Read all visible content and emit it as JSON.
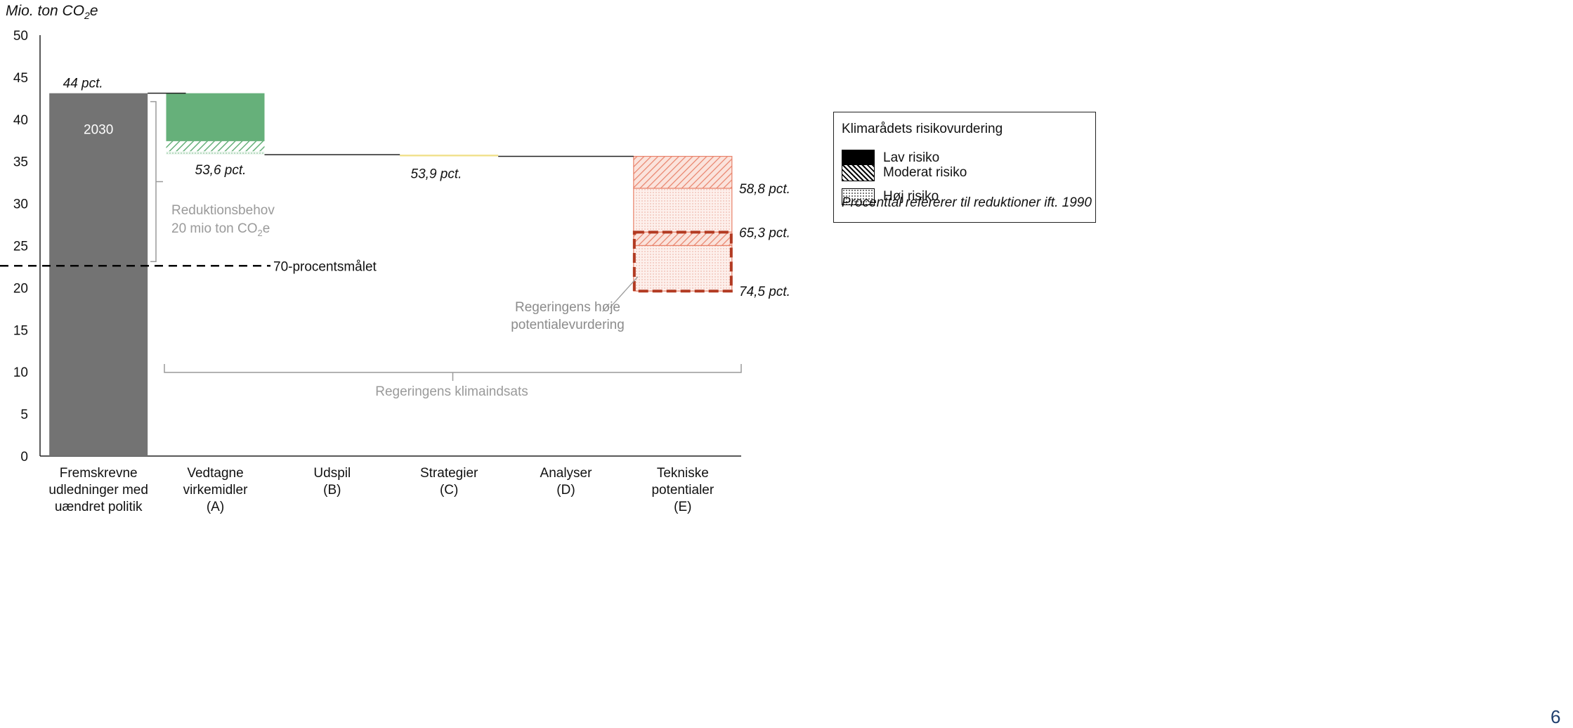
{
  "unit_label": "Mio. ton CO",
  "unit_label_sub": "2",
  "unit_label_suffix": "e",
  "chart_data": {
    "type": "bar",
    "subtype": "waterfall",
    "ylim": [
      0,
      50
    ],
    "yticks": [
      0,
      5,
      10,
      15,
      20,
      25,
      30,
      35,
      40,
      45,
      50
    ],
    "grid": false,
    "categories": [
      [
        "Fremskrevne",
        "udledninger med",
        "uændret politik"
      ],
      [
        "Vedtagne",
        "virkemidler",
        "(A)"
      ],
      [
        "Udspil",
        "(B)"
      ],
      [
        "Strategier",
        "(C)"
      ],
      [
        "Analyser",
        "(D)"
      ],
      [
        "Tekniske",
        "potentialer",
        "(E)"
      ]
    ],
    "baseline": {
      "value": 43.1,
      "bar_label": "2030",
      "top_label": "44 pct.",
      "color": "#737373"
    },
    "segments": [
      {
        "category": 1,
        "from": 43.1,
        "to": 37.4,
        "risk": "lav",
        "color": "#66b07a"
      },
      {
        "category": 1,
        "from": 37.4,
        "to": 36.2,
        "risk": "moderat",
        "color": "#66b07a"
      },
      {
        "category": 1,
        "from": 36.2,
        "to": 35.8,
        "risk": "hoej",
        "color": "#66b07a"
      },
      {
        "category": 3,
        "from": 35.8,
        "to": 35.6,
        "risk": "lav",
        "color": "#f0e08a"
      },
      {
        "category": 5,
        "from": 35.6,
        "to": 31.8,
        "risk": "moderat",
        "color": "#e8826a"
      },
      {
        "category": 5,
        "from": 31.8,
        "to": 26.6,
        "risk": "hoej",
        "color": "#e8826a"
      },
      {
        "category": 5,
        "from": 26.6,
        "to": 25.0,
        "risk": "moderat",
        "color": "#e8826a"
      },
      {
        "category": 5,
        "from": 25.0,
        "to": 19.6,
        "risk": "hoej",
        "color": "#e8826a"
      }
    ],
    "annotations": [
      {
        "text": "53,6 pct.",
        "value": 35.8
      },
      {
        "text": "53,9 pct.",
        "value": 35.6
      },
      {
        "text": "58,8 pct.",
        "value": 31.8
      },
      {
        "text": "65,3 pct.",
        "value": 26.6
      },
      {
        "text": "74,5 pct.",
        "value": 19.6
      }
    ],
    "target": {
      "value": 22.6,
      "label": "70-procentsmålet"
    },
    "reduction_need": {
      "from": 43.1,
      "to": 22.6,
      "label_line1": "Reduktionsbehov",
      "label_line2": "20 mio ton CO",
      "label_sub": "2",
      "label_suffix": "e"
    },
    "high_potential": {
      "from": 26.6,
      "to": 19.6,
      "label_line1": "Regeringens høje",
      "label_line2": "potentialevurdering",
      "color": "#b23a22"
    },
    "government_effort": {
      "label": "Regeringens klimaindsats"
    }
  },
  "legend": {
    "title": "Klimarådets risikovurdering",
    "items": [
      {
        "label": "Lav risiko"
      },
      {
        "label": "Moderat risiko"
      },
      {
        "label": "Høj risiko"
      }
    ],
    "note": "Procenttal refererer til reduktioner ift. 1990"
  },
  "page_number": "6"
}
